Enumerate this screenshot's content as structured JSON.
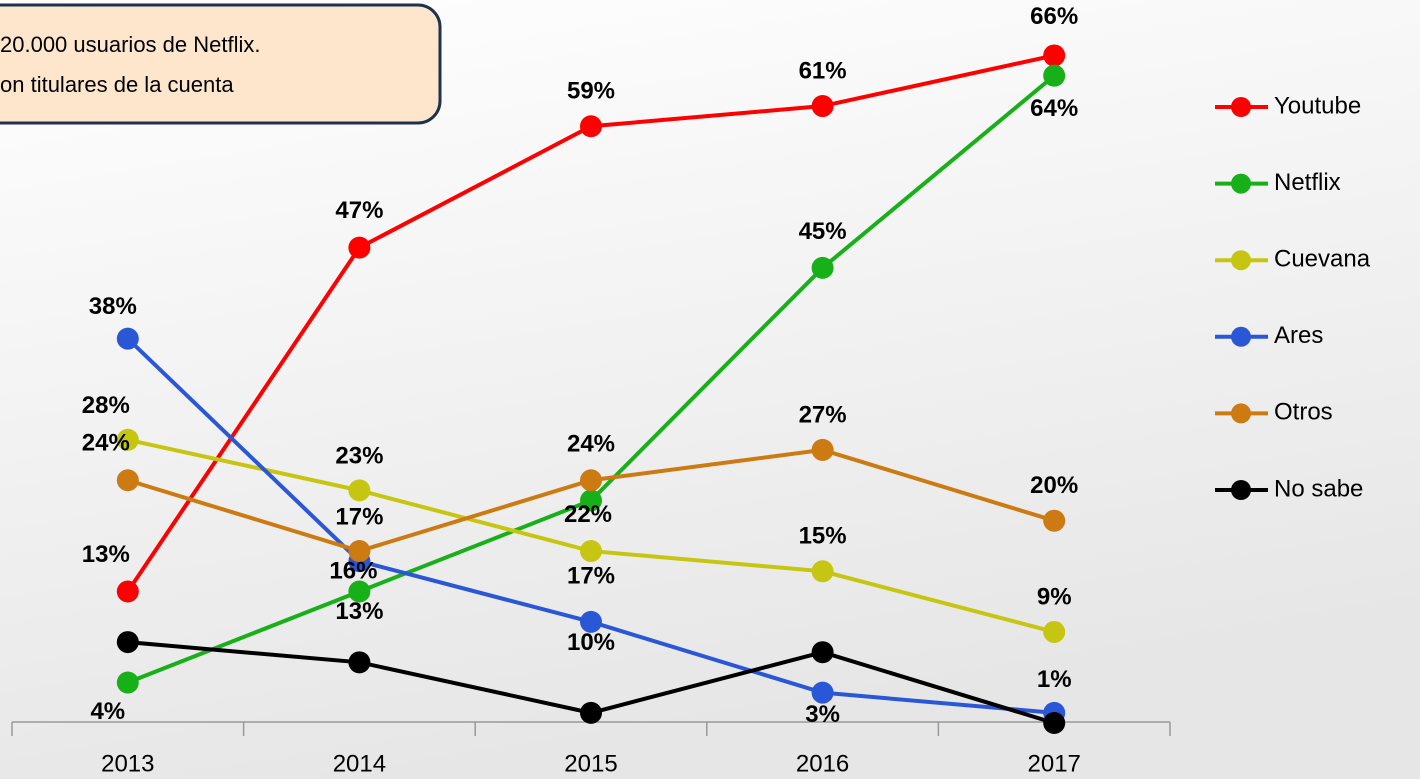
{
  "chart_data": {
    "type": "line",
    "annotations": [
      "20.000 usuarios de Netflix.",
      "on titulares de la cuenta"
    ],
    "categories": [
      "2013",
      "2014",
      "2015",
      "2016",
      "2017"
    ],
    "ylim": [
      0,
      70
    ],
    "legend": "right",
    "series": [
      {
        "name": "Youtube",
        "color": "#ff0000",
        "values": [
          13,
          47,
          59,
          61,
          66
        ],
        "value_labels": [
          "13%",
          "47%",
          "59%",
          "61%",
          "66%"
        ]
      },
      {
        "name": "Netflix",
        "color": "#18b018",
        "values": [
          4,
          13,
          22,
          45,
          64
        ],
        "value_labels": [
          "4%",
          "13%",
          "22%",
          "45%",
          "64%"
        ]
      },
      {
        "name": "Cuevana",
        "color": "#c6c612",
        "values": [
          28,
          23,
          17,
          15,
          9
        ],
        "value_labels": [
          "28%",
          "23%",
          "17%",
          "15%",
          "9%"
        ]
      },
      {
        "name": "Ares",
        "color": "#2a57d6",
        "values": [
          38,
          16,
          10,
          3,
          1
        ],
        "value_labels": [
          "38%",
          "16%",
          "10%",
          "3%",
          "1%"
        ]
      },
      {
        "name": "Otros",
        "color": "#cc7a12",
        "values": [
          24,
          17,
          24,
          27,
          20
        ],
        "value_labels": [
          "24%",
          "17%",
          "24%",
          "27%",
          "20%"
        ]
      },
      {
        "name": "No sabe",
        "color": "#000000",
        "values": [
          8,
          6,
          1,
          7,
          0
        ]
      }
    ]
  }
}
